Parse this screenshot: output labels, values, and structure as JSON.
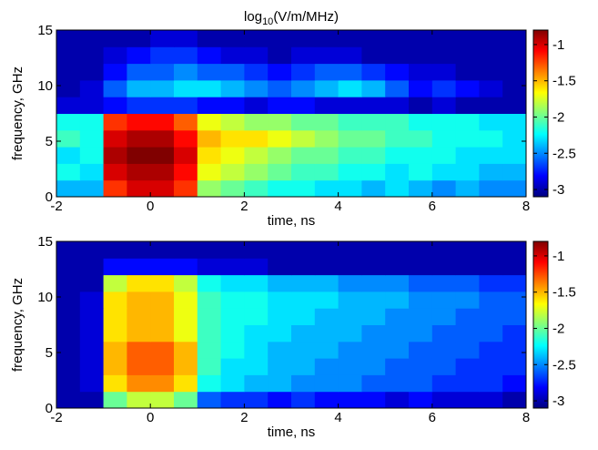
{
  "chart_data": [
    {
      "type": "heatmap",
      "title": {
        "base": "log",
        "subscript": "10",
        "rest": "(V/m/MHz)"
      },
      "xlabel": "time, ns",
      "ylabel": "frequency, GHz",
      "x_bins": [
        -2,
        -1.5,
        -1,
        -0.5,
        0,
        0.5,
        1,
        1.5,
        2,
        2.5,
        3,
        3.5,
        4,
        4.5,
        5,
        5.5,
        6,
        6.5,
        7,
        7.5,
        8
      ],
      "y_bins": [
        0,
        1.5,
        3,
        4.5,
        6,
        7.5,
        9,
        10.5,
        12,
        13.5,
        15
      ],
      "values": [
        [
          -2.4,
          -2.4,
          -1.2,
          -1.0,
          -1.0,
          -1.2,
          -1.9,
          -2.0,
          -2.1,
          -2.2,
          -2.2,
          -2.3,
          -2.3,
          -2.4,
          -2.3,
          -2.4,
          -2.5,
          -2.4,
          -2.5,
          -2.5
        ],
        [
          -2.2,
          -2.3,
          -1.0,
          -0.9,
          -0.9,
          -1.1,
          -1.7,
          -1.8,
          -1.9,
          -2.0,
          -2.1,
          -2.1,
          -2.2,
          -2.2,
          -2.3,
          -2.2,
          -2.3,
          -2.3,
          -2.4,
          -2.4
        ],
        [
          -2.3,
          -2.2,
          -0.9,
          -0.8,
          -0.8,
          -1.0,
          -1.6,
          -1.7,
          -1.8,
          -1.9,
          -2.0,
          -2.0,
          -2.1,
          -2.1,
          -2.2,
          -2.2,
          -2.2,
          -2.3,
          -2.3,
          -2.3
        ],
        [
          -2.1,
          -2.2,
          -1.0,
          -0.9,
          -0.9,
          -1.1,
          -1.5,
          -1.6,
          -1.6,
          -1.7,
          -1.8,
          -1.9,
          -2.0,
          -2.0,
          -2.1,
          -2.1,
          -2.2,
          -2.2,
          -2.2,
          -2.3
        ],
        [
          -2.2,
          -2.2,
          -1.2,
          -1.1,
          -1.1,
          -1.3,
          -1.7,
          -1.8,
          -1.9,
          -1.9,
          -2.0,
          -2.0,
          -2.1,
          -2.1,
          -2.1,
          -2.2,
          -2.2,
          -2.2,
          -2.3,
          -2.3
        ],
        [
          -2.9,
          -2.9,
          -2.8,
          -2.7,
          -2.7,
          -2.7,
          -2.8,
          -2.8,
          -2.9,
          -2.8,
          -2.8,
          -2.9,
          -2.9,
          -2.9,
          -2.9,
          -3.0,
          -2.9,
          -3.0,
          -3.0,
          -3.0
        ],
        [
          -3.0,
          -2.9,
          -2.6,
          -2.4,
          -2.4,
          -2.3,
          -2.3,
          -2.4,
          -2.5,
          -2.6,
          -2.5,
          -2.4,
          -2.3,
          -2.4,
          -2.6,
          -2.8,
          -2.7,
          -2.8,
          -2.9,
          -3.0
        ],
        [
          -3.0,
          -3.0,
          -2.8,
          -2.6,
          -2.6,
          -2.5,
          -2.6,
          -2.6,
          -2.7,
          -2.8,
          -2.7,
          -2.6,
          -2.6,
          -2.7,
          -2.8,
          -2.9,
          -2.9,
          -3.0,
          -3.0,
          -3.0
        ],
        [
          -3.0,
          -3.0,
          -2.9,
          -2.8,
          -2.7,
          -2.7,
          -2.8,
          -2.9,
          -2.9,
          -3.0,
          -2.9,
          -2.9,
          -2.9,
          -3.0,
          -3.0,
          -3.0,
          -3.0,
          -3.0,
          -3.0,
          -3.0
        ],
        [
          -3.0,
          -3.0,
          -3.0,
          -3.0,
          -2.9,
          -2.9,
          -3.0,
          -3.0,
          -3.0,
          -3.0,
          -3.0,
          -3.0,
          -3.0,
          -3.0,
          -3.0,
          -3.0,
          -3.0,
          -3.0,
          -3.0,
          -3.0
        ]
      ],
      "xlim": [
        -2,
        8
      ],
      "ylim": [
        0,
        15
      ],
      "xticks": [
        -2,
        0,
        2,
        4,
        6,
        8
      ],
      "yticks": [
        0,
        5,
        10,
        15
      ],
      "clim": [
        -3.1,
        -0.8
      ],
      "cticks": [
        -1,
        -1.5,
        -2,
        -2.5,
        -3
      ],
      "colormap": "jet"
    },
    {
      "type": "heatmap",
      "xlabel": "time, ns",
      "ylabel": "frequency, GHz",
      "x_bins": [
        -2,
        -1.5,
        -1,
        -0.5,
        0,
        0.5,
        1,
        1.5,
        2,
        2.5,
        3,
        3.5,
        4,
        4.5,
        5,
        5.5,
        6,
        6.5,
        7,
        7.5,
        8
      ],
      "y_bins": [
        0,
        1.5,
        3,
        4.5,
        6,
        7.5,
        9,
        10.5,
        12,
        13.5,
        15
      ],
      "values": [
        [
          -3.0,
          -3.0,
          -2.0,
          -1.8,
          -1.8,
          -2.0,
          -2.6,
          -2.7,
          -2.7,
          -2.8,
          -2.7,
          -2.8,
          -2.8,
          -2.8,
          -2.9,
          -2.8,
          -2.9,
          -2.9,
          -2.9,
          -3.0
        ],
        [
          -3.0,
          -2.9,
          -1.6,
          -1.4,
          -1.4,
          -1.6,
          -2.2,
          -2.3,
          -2.4,
          -2.4,
          -2.5,
          -2.5,
          -2.5,
          -2.6,
          -2.6,
          -2.6,
          -2.7,
          -2.7,
          -2.7,
          -2.8
        ],
        [
          -3.0,
          -2.9,
          -1.5,
          -1.3,
          -1.3,
          -1.5,
          -2.1,
          -2.3,
          -2.3,
          -2.4,
          -2.4,
          -2.5,
          -2.5,
          -2.5,
          -2.6,
          -2.6,
          -2.6,
          -2.7,
          -2.7,
          -2.7
        ],
        [
          -3.0,
          -2.9,
          -1.5,
          -1.3,
          -1.3,
          -1.5,
          -2.1,
          -2.2,
          -2.3,
          -2.4,
          -2.4,
          -2.4,
          -2.5,
          -2.5,
          -2.5,
          -2.6,
          -2.6,
          -2.6,
          -2.7,
          -2.7
        ],
        [
          -3.0,
          -2.9,
          -1.6,
          -1.5,
          -1.5,
          -1.7,
          -2.1,
          -2.2,
          -2.3,
          -2.3,
          -2.4,
          -2.4,
          -2.4,
          -2.5,
          -2.5,
          -2.5,
          -2.6,
          -2.6,
          -2.6,
          -2.7
        ],
        [
          -3.0,
          -2.9,
          -1.6,
          -1.5,
          -1.5,
          -1.7,
          -2.1,
          -2.2,
          -2.2,
          -2.3,
          -2.3,
          -2.4,
          -2.4,
          -2.4,
          -2.5,
          -2.5,
          -2.5,
          -2.6,
          -2.6,
          -2.6
        ],
        [
          -3.0,
          -2.9,
          -1.6,
          -1.5,
          -1.5,
          -1.7,
          -2.1,
          -2.2,
          -2.2,
          -2.3,
          -2.3,
          -2.3,
          -2.4,
          -2.4,
          -2.4,
          -2.5,
          -2.5,
          -2.5,
          -2.6,
          -2.6
        ],
        [
          -3.0,
          -3.0,
          -1.8,
          -1.6,
          -1.6,
          -1.8,
          -2.2,
          -2.3,
          -2.3,
          -2.4,
          -2.4,
          -2.4,
          -2.5,
          -2.5,
          -2.5,
          -2.6,
          -2.6,
          -2.6,
          -2.7,
          -2.7
        ],
        [
          -3.0,
          -3.0,
          -2.8,
          -2.8,
          -2.8,
          -2.8,
          -2.9,
          -2.9,
          -2.9,
          -3.0,
          -3.0,
          -3.0,
          -3.0,
          -3.0,
          -3.0,
          -3.0,
          -3.0,
          -3.0,
          -3.0,
          -3.0
        ],
        [
          -3.0,
          -3.0,
          -3.0,
          -3.0,
          -3.0,
          -3.0,
          -3.0,
          -3.0,
          -3.0,
          -3.0,
          -3.0,
          -3.0,
          -3.0,
          -3.0,
          -3.0,
          -3.0,
          -3.0,
          -3.0,
          -3.0,
          -3.0
        ]
      ],
      "xlim": [
        -2,
        8
      ],
      "ylim": [
        0,
        15
      ],
      "xticks": [
        -2,
        0,
        2,
        4,
        6,
        8
      ],
      "yticks": [
        0,
        5,
        10,
        15
      ],
      "clim": [
        -3.1,
        -0.8
      ],
      "cticks": [
        -1,
        -1.5,
        -2,
        -2.5,
        -3
      ],
      "colormap": "jet"
    }
  ]
}
